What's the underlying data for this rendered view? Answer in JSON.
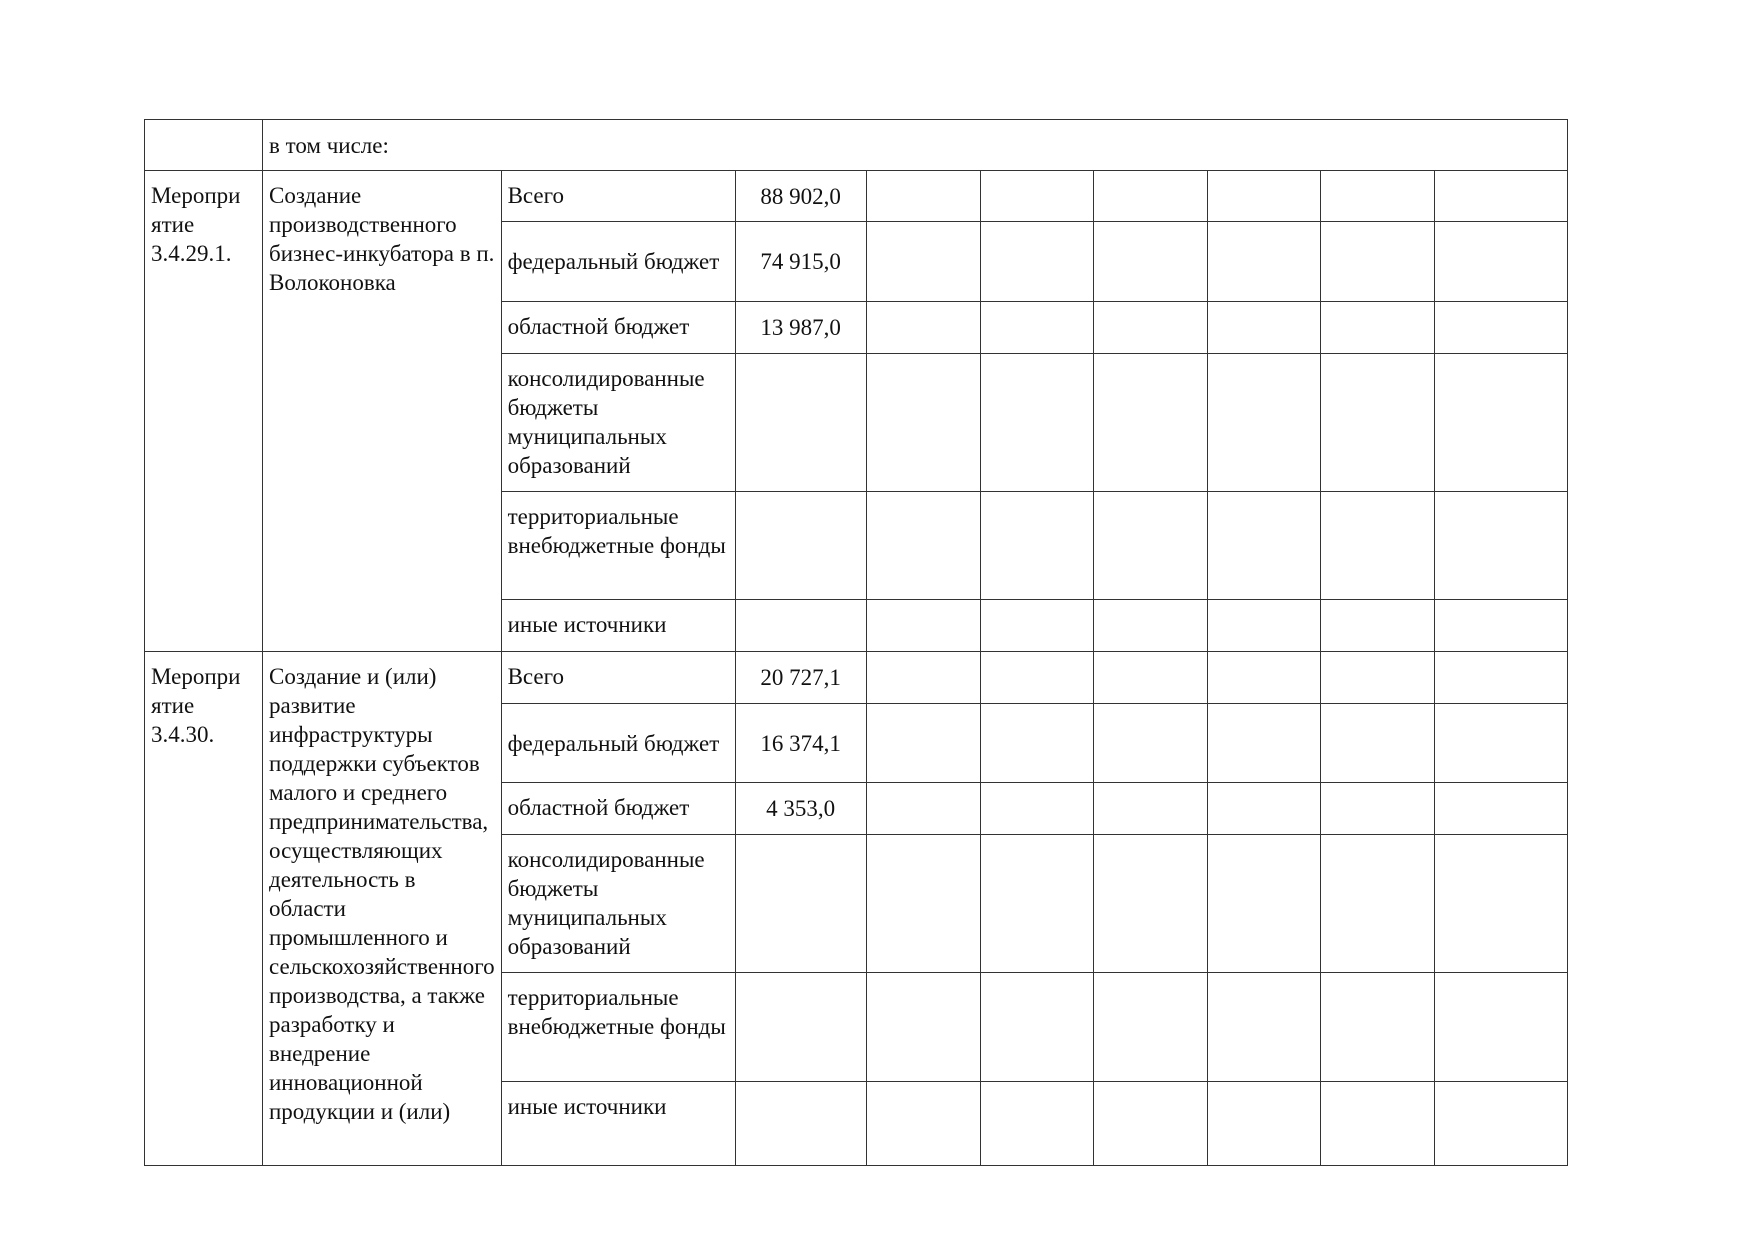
{
  "intro_row": {
    "label": "в том числе:"
  },
  "activities": [
    {
      "code": "Мероприятие 3.4.29.1.",
      "code_lines": [
        "Меропри",
        "ятие",
        "3.4.29.1."
      ],
      "title": "Создание производственного бизнес-инкубатора в п. Волоконовка",
      "sources": [
        {
          "label": "Всего",
          "value": "88 902,0"
        },
        {
          "label": "федеральный бюджет",
          "value": "74 915,0"
        },
        {
          "label": "областной бюджет",
          "value": "13 987,0"
        },
        {
          "label": "консолидированные бюджеты муниципальных образований",
          "value": ""
        },
        {
          "label": "территориальные внебюджетные фонды",
          "value": ""
        },
        {
          "label": "иные источники",
          "value": ""
        }
      ]
    },
    {
      "code": "Мероприятие 3.4.30.",
      "code_lines": [
        "Меропри",
        "ятие",
        "3.4.30."
      ],
      "title": "Создание и (или) развитие инфраструктуры поддержки субъектов малого и среднего предпринимательства, осуществляющих деятельность в области промышленного и сельскохозяйственного производства, а также разработку и внедрение инновационной продукции и (или)",
      "sources": [
        {
          "label": "Всего",
          "value": "20 727,1"
        },
        {
          "label": "федеральный бюджет",
          "value": "16 374,1"
        },
        {
          "label": "областной бюджет",
          "value": "4 353,0"
        },
        {
          "label": "консолидированные бюджеты муниципальных образований",
          "value": ""
        },
        {
          "label": "территориальные внебюджетные фонды",
          "value": ""
        },
        {
          "label": "иные источники",
          "value": ""
        }
      ]
    }
  ]
}
